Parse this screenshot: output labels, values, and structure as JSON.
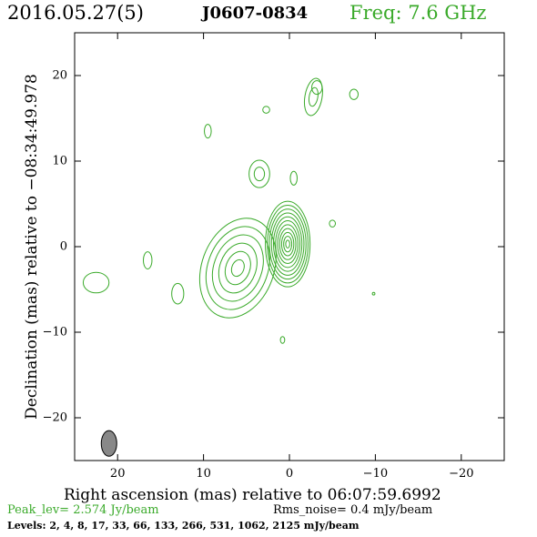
{
  "header": {
    "date": "2016.05.27(5)",
    "source": "J0607-0834",
    "freq": "Freq: 7.6 GHz"
  },
  "footer": {
    "peak": "Peak_lev=  2.574 Jy/beam",
    "rms": "Rms_noise=  0.4 mJy/beam",
    "levels": "Levels:   2,   4,   8,  17,  33,  66, 133, 266, 531, 1062, 2125  mJy/beam"
  },
  "colors": {
    "contour": "#3aaa2a",
    "beam_fill": "#888888"
  },
  "chart_data": {
    "type": "contour",
    "xlabel": "Right ascension (mas) relative to 06:07:59.6992",
    "ylabel": "Declination (mas) relative to −08:34:49.978",
    "xlim": [
      25,
      -25
    ],
    "ylim": [
      -25,
      25
    ],
    "xticks": [
      20,
      10,
      0,
      -10,
      -20
    ],
    "yticks": [
      20,
      10,
      0,
      -10,
      -20
    ],
    "xtick_labels": [
      "20",
      "10",
      "0",
      "−10",
      "−20"
    ],
    "ytick_labels": [
      "20",
      "10",
      "0",
      "−10",
      "−20"
    ],
    "levels_mJy": [
      2,
      4,
      8,
      17,
      33,
      66,
      133,
      266,
      531,
      1062,
      2125
    ],
    "core": {
      "x": 0.2,
      "y": 0.3,
      "rx": 2.6,
      "ry": 5.0,
      "n": 11
    },
    "components": [
      {
        "x": 6.0,
        "y": -2.5,
        "rx": 4.2,
        "ry": 6.0,
        "rot": 20,
        "n": 6
      },
      {
        "x": 3.5,
        "y": 8.5,
        "rx": 1.2,
        "ry": 1.6,
        "rot": 0,
        "n": 2
      },
      {
        "x": -2.8,
        "y": 17.5,
        "rx": 1.0,
        "ry": 2.2,
        "rot": 10,
        "n": 2
      },
      {
        "x": -3.2,
        "y": 18.6,
        "rx": 0.6,
        "ry": 0.8,
        "rot": 0,
        "n": 1
      },
      {
        "x": -7.5,
        "y": 17.8,
        "rx": 0.5,
        "ry": 0.6,
        "rot": 0,
        "n": 1
      },
      {
        "x": 2.7,
        "y": 16.0,
        "rx": 0.4,
        "ry": 0.4,
        "rot": 0,
        "n": 1
      },
      {
        "x": 9.5,
        "y": 13.5,
        "rx": 0.4,
        "ry": 0.8,
        "rot": 0,
        "n": 1
      },
      {
        "x": -0.5,
        "y": 8.0,
        "rx": 0.4,
        "ry": 0.8,
        "rot": 0,
        "n": 1
      },
      {
        "x": -5.0,
        "y": 2.7,
        "rx": 0.35,
        "ry": 0.4,
        "rot": 0,
        "n": 1
      },
      {
        "x": 22.5,
        "y": -4.2,
        "rx": 1.5,
        "ry": 1.2,
        "rot": 0,
        "n": 1
      },
      {
        "x": 16.5,
        "y": -1.6,
        "rx": 0.5,
        "ry": 1.0,
        "rot": 0,
        "n": 1
      },
      {
        "x": 13.0,
        "y": -5.5,
        "rx": 0.7,
        "ry": 1.2,
        "rot": 0,
        "n": 1
      },
      {
        "x": 0.8,
        "y": -10.9,
        "rx": 0.25,
        "ry": 0.4,
        "rot": 0,
        "n": 1
      },
      {
        "x": -9.8,
        "y": -5.5,
        "rx": 0.15,
        "ry": 0.15,
        "rot": 0,
        "n": 1
      }
    ],
    "beam": {
      "x": 21.0,
      "y": -23.0,
      "major": 3.0,
      "minor": 1.8,
      "pa": 0
    }
  }
}
